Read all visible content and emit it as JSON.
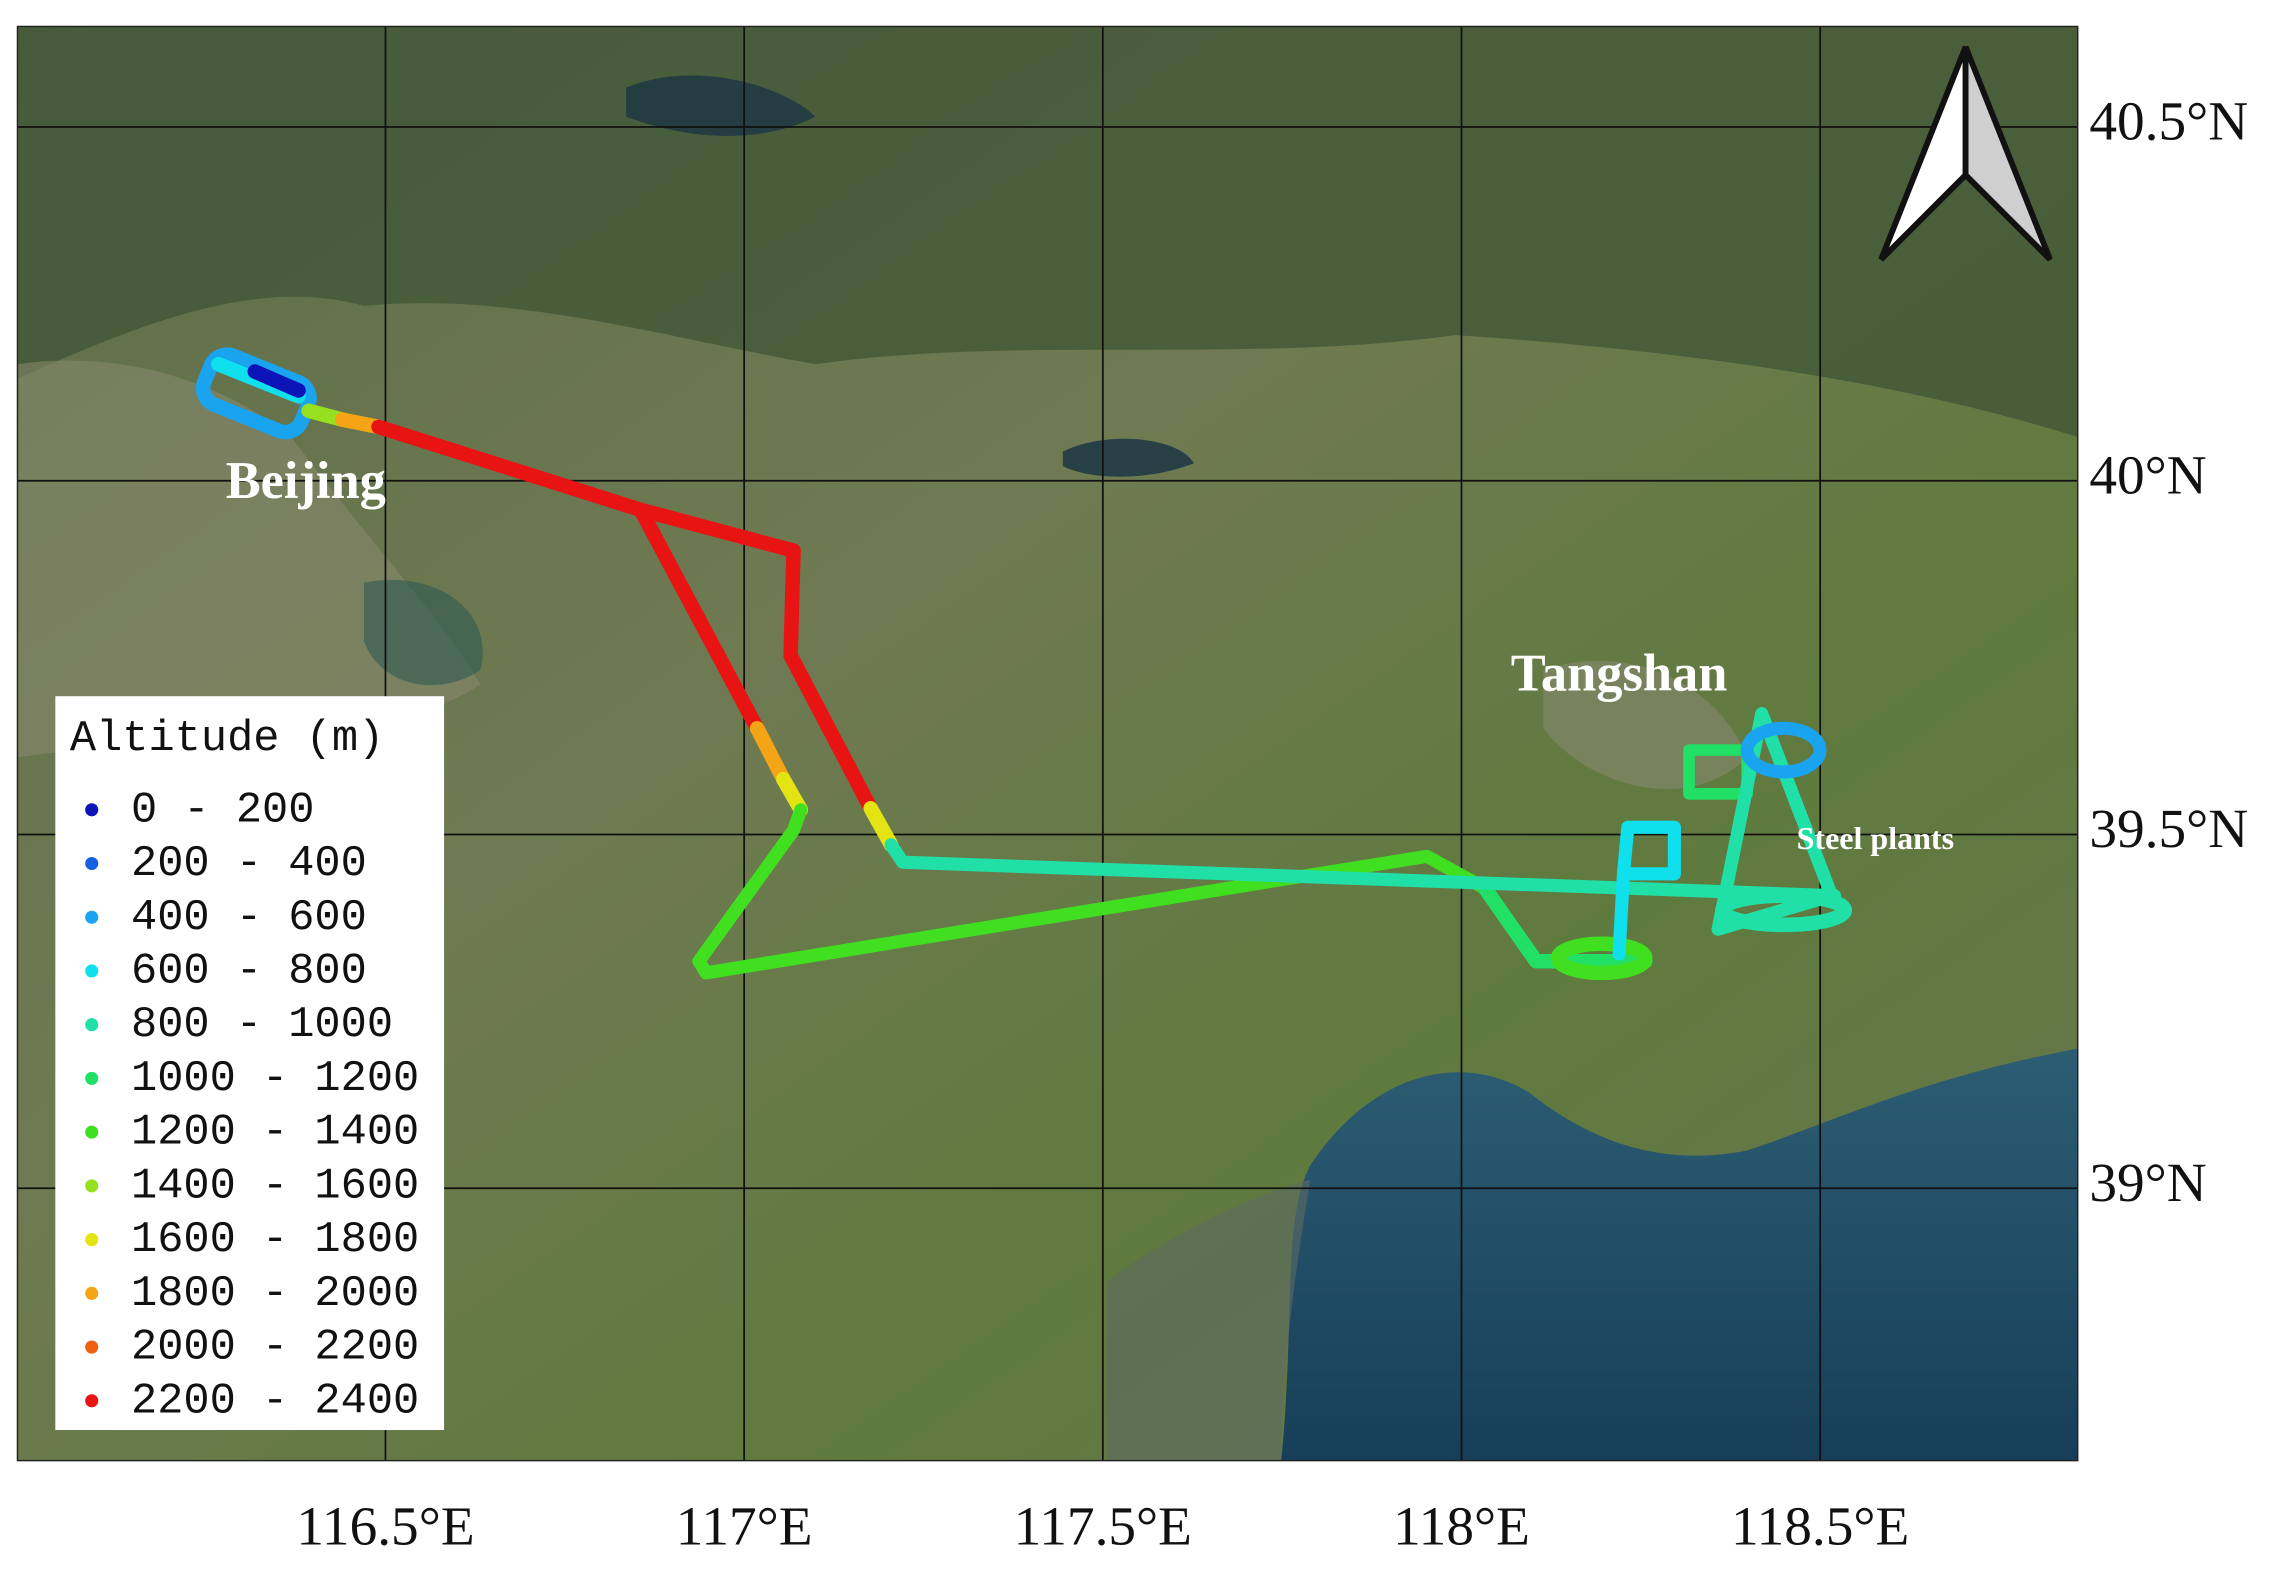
{
  "map": {
    "xlim": [
      115.987,
      118.859
    ],
    "ylim": [
      38.615,
      40.642
    ],
    "xticks": [
      {
        "value": 116.5,
        "label": "116.5°E"
      },
      {
        "value": 117,
        "label": "117°E"
      },
      {
        "value": 117.5,
        "label": "117.5°E"
      },
      {
        "value": 118,
        "label": "118°E"
      },
      {
        "value": 118.5,
        "label": "118.5°E"
      }
    ],
    "yticks": [
      {
        "value": 40.5,
        "label": "40.5°N"
      },
      {
        "value": 40,
        "label": "40°N"
      },
      {
        "value": 39.5,
        "label": "39.5°N"
      },
      {
        "value": 39,
        "label": "39°N"
      }
    ],
    "grid": true,
    "places": [
      "Beijing",
      "Tangshan",
      "Steel plants"
    ],
    "legend": {
      "title": "Altitude (m)",
      "entries": [
        {
          "label": "0 - 200",
          "color": "#0c14b8"
        },
        {
          "label": "200 - 400",
          "color": "#1560e0"
        },
        {
          "label": "400 - 600",
          "color": "#1aa4f0"
        },
        {
          "label": "600 - 800",
          "color": "#10e0ec"
        },
        {
          "label": "800 - 1000",
          "color": "#20e0a8"
        },
        {
          "label": "1000 - 1200",
          "color": "#22e066"
        },
        {
          "label": "1200 - 1400",
          "color": "#40e020"
        },
        {
          "label": "1400 - 1600",
          "color": "#96e020"
        },
        {
          "label": "1600 - 1800",
          "color": "#e4e414"
        },
        {
          "label": "1800 - 2000",
          "color": "#f4a414"
        },
        {
          "label": "2000 - 2200",
          "color": "#f06012"
        },
        {
          "label": "2200 - 2400",
          "color": "#e81414"
        }
      ]
    }
  }
}
